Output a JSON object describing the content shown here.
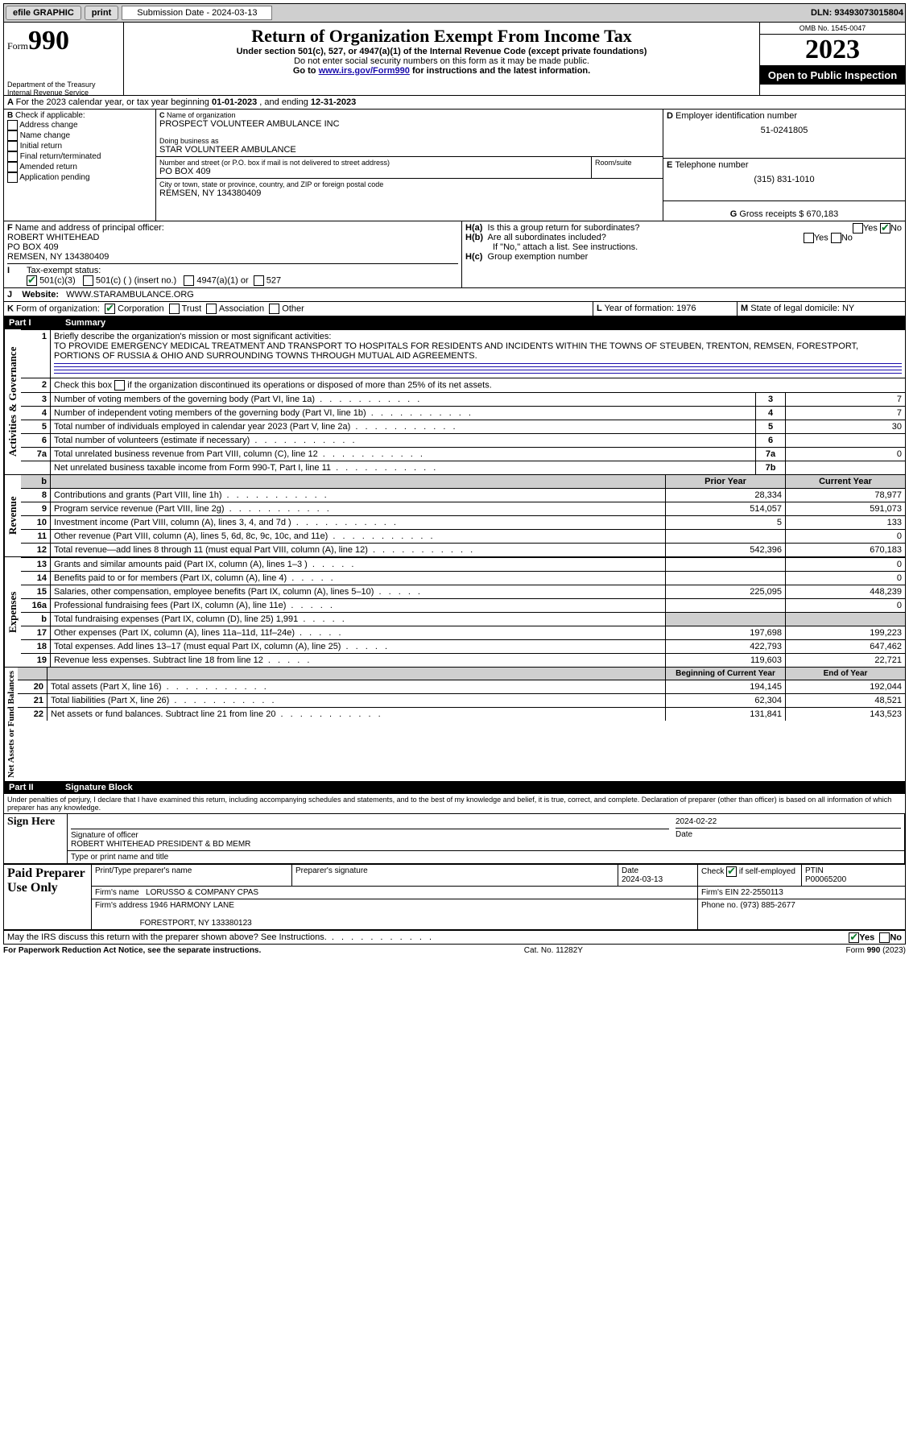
{
  "topbar": {
    "efile": "efile GRAPHIC",
    "print": "print",
    "sub_label": "Submission Date - 2024-03-13",
    "dln": "DLN: 93493073015804"
  },
  "header": {
    "form_word": "Form",
    "form_num": "990",
    "dept1": "Department of the Treasury",
    "dept2": "Internal Revenue Service",
    "title": "Return of Organization Exempt From Income Tax",
    "sub1": "Under section 501(c), 527, or 4947(a)(1) of the Internal Revenue Code (except private foundations)",
    "sub2": "Do not enter social security numbers on this form as it may be made public.",
    "sub3_pre": "Go to ",
    "sub3_link": "www.irs.gov/Form990",
    "sub3_post": " for instructions and the latest information.",
    "omb": "OMB No. 1545-0047",
    "year": "2023",
    "open": "Open to Public Inspection"
  },
  "A": {
    "text_pre": "For the 2023 calendar year, or tax year beginning ",
    "begin": "01-01-2023",
    "mid": " , and ending ",
    "end": "12-31-2023"
  },
  "B": {
    "label": "Check if applicable:",
    "items": [
      "Address change",
      "Name change",
      "Initial return",
      "Final return/terminated",
      "Amended return",
      "Application pending"
    ]
  },
  "C": {
    "name_lbl": "Name of organization",
    "name": "PROSPECT VOLUNTEER AMBULANCE INC",
    "dba_lbl": "Doing business as",
    "dba": "STAR VOLUNTEER AMBULANCE",
    "street_lbl": "Number and street (or P.O. box if mail is not delivered to street address)",
    "room_lbl": "Room/suite",
    "street": "PO BOX 409",
    "city_lbl": "City or town, state or province, country, and ZIP or foreign postal code",
    "city": "REMSEN, NY  134380409"
  },
  "D": {
    "lbl": "Employer identification number",
    "val": "51-0241805"
  },
  "E": {
    "lbl": "Telephone number",
    "val": "(315) 831-1010"
  },
  "G": {
    "lbl": "Gross receipts $",
    "val": "670,183"
  },
  "F": {
    "lbl": "Name and address of principal officer:",
    "name": "ROBERT WHITEHEAD",
    "line2": "PO BOX 409",
    "line3": "REMSEN, NY  134380409"
  },
  "H": {
    "a": "Is this a group return for subordinates?",
    "b": "Are all subordinates included?",
    "b2": "If \"No,\" attach a list. See instructions.",
    "c": "Group exemption number",
    "yes": "Yes",
    "no": "No"
  },
  "I": {
    "lbl": "Tax-exempt status:",
    "o1": "501(c)(3)",
    "o2": "501(c) (  ) (insert no.)",
    "o3": "4947(a)(1) or",
    "o4": "527"
  },
  "J": {
    "lbl": "Website:",
    "val": "WWW.STARAMBULANCE.ORG"
  },
  "K": {
    "lbl": "Form of organization:",
    "o1": "Corporation",
    "o2": "Trust",
    "o3": "Association",
    "o4": "Other"
  },
  "L": {
    "lbl": "Year of formation:",
    "val": "1976"
  },
  "M": {
    "lbl": "State of legal domicile:",
    "val": "NY"
  },
  "parts": {
    "p1": "Part I",
    "p1t": "Summary",
    "p2": "Part II",
    "p2t": "Signature Block"
  },
  "summary": {
    "q1": "Briefly describe the organization's mission or most significant activities:",
    "mission": "TO PROVIDE EMERGENCY MEDICAL TREATMENT AND TRANSPORT TO HOSPITALS FOR RESIDENTS AND INCIDENTS WITHIN THE TOWNS OF STEUBEN, TRENTON, REMSEN, FORESTPORT, PORTIONS OF RUSSIA & OHIO AND SURROUNDING TOWNS THROUGH MUTUAL AID AGREEMENTS.",
    "q2": "Check this box      if the organization discontinued its operations or disposed of more than 25% of its net assets.",
    "rows_gov": [
      {
        "n": "3",
        "t": "Number of voting members of the governing body (Part VI, line 1a)",
        "c": "3",
        "v": "7"
      },
      {
        "n": "4",
        "t": "Number of independent voting members of the governing body (Part VI, line 1b)",
        "c": "4",
        "v": "7"
      },
      {
        "n": "5",
        "t": "Total number of individuals employed in calendar year 2023 (Part V, line 2a)",
        "c": "5",
        "v": "30"
      },
      {
        "n": "6",
        "t": "Total number of volunteers (estimate if necessary)",
        "c": "6",
        "v": ""
      },
      {
        "n": "7a",
        "t": "Total unrelated business revenue from Part VIII, column (C), line 12",
        "c": "7a",
        "v": "0"
      },
      {
        "n": "",
        "t": "Net unrelated business taxable income from Form 990-T, Part I, line 11",
        "c": "7b",
        "v": ""
      }
    ],
    "col_prior": "Prior Year",
    "col_curr": "Current Year",
    "rows_rev": [
      {
        "n": "8",
        "t": "Contributions and grants (Part VIII, line 1h)",
        "p": "28,334",
        "c": "78,977"
      },
      {
        "n": "9",
        "t": "Program service revenue (Part VIII, line 2g)",
        "p": "514,057",
        "c": "591,073"
      },
      {
        "n": "10",
        "t": "Investment income (Part VIII, column (A), lines 3, 4, and 7d )",
        "p": "5",
        "c": "133"
      },
      {
        "n": "11",
        "t": "Other revenue (Part VIII, column (A), lines 5, 6d, 8c, 9c, 10c, and 11e)",
        "p": "",
        "c": "0"
      },
      {
        "n": "12",
        "t": "Total revenue—add lines 8 through 11 (must equal Part VIII, column (A), line 12)",
        "p": "542,396",
        "c": "670,183"
      }
    ],
    "rows_exp": [
      {
        "n": "13",
        "t": "Grants and similar amounts paid (Part IX, column (A), lines 1–3 )",
        "p": "",
        "c": "0"
      },
      {
        "n": "14",
        "t": "Benefits paid to or for members (Part IX, column (A), line 4)",
        "p": "",
        "c": "0"
      },
      {
        "n": "15",
        "t": "Salaries, other compensation, employee benefits (Part IX, column (A), lines 5–10)",
        "p": "225,095",
        "c": "448,239"
      },
      {
        "n": "16a",
        "t": "Professional fundraising fees (Part IX, column (A), line 11e)",
        "p": "",
        "c": "0"
      },
      {
        "n": "b",
        "t": "Total fundraising expenses (Part IX, column (D), line 25) 1,991",
        "p": "GRAY",
        "c": "GRAY"
      },
      {
        "n": "17",
        "t": "Other expenses (Part IX, column (A), lines 11a–11d, 11f–24e)",
        "p": "197,698",
        "c": "199,223"
      },
      {
        "n": "18",
        "t": "Total expenses. Add lines 13–17 (must equal Part IX, column (A), line 25)",
        "p": "422,793",
        "c": "647,462"
      },
      {
        "n": "19",
        "t": "Revenue less expenses. Subtract line 18 from line 12",
        "p": "119,603",
        "c": "22,721"
      }
    ],
    "col_boy": "Beginning of Current Year",
    "col_eoy": "End of Year",
    "rows_net": [
      {
        "n": "20",
        "t": "Total assets (Part X, line 16)",
        "p": "194,145",
        "c": "192,044"
      },
      {
        "n": "21",
        "t": "Total liabilities (Part X, line 26)",
        "p": "62,304",
        "c": "48,521"
      },
      {
        "n": "22",
        "t": "Net assets or fund balances. Subtract line 21 from line 20",
        "p": "131,841",
        "c": "143,523"
      }
    ],
    "vlabels": {
      "gov": "Activities & Governance",
      "rev": "Revenue",
      "exp": "Expenses",
      "net": "Net Assets or Fund Balances"
    }
  },
  "sig": {
    "perjury": "Under penalties of perjury, I declare that I have examined this return, including accompanying schedules and statements, and to the best of my knowledge and belief, it is true, correct, and complete. Declaration of preparer (other than officer) is based on all information of which preparer has any knowledge.",
    "sign_here": "Sign Here",
    "sig_officer": "Signature of officer",
    "date": "Date",
    "date_val": "2024-02-22",
    "name_title": "ROBERT WHITEHEAD  PRESIDENT & BD MEMR",
    "type_name": "Type or print name and title",
    "paid": "Paid Preparer Use Only",
    "pt_name_lbl": "Print/Type preparer's name",
    "pt_sig_lbl": "Preparer's signature",
    "pt_date_lbl": "Date",
    "pt_date": "2024-03-13",
    "check_self": "Check        if self-employed",
    "ptin_lbl": "PTIN",
    "ptin": "P00065200",
    "firm_name_lbl": "Firm's name",
    "firm_name": "LORUSSO & COMPANY CPAS",
    "firm_ein_lbl": "Firm's EIN",
    "firm_ein": "22-2550113",
    "firm_addr_lbl": "Firm's address",
    "firm_addr1": "1946 HARMONY LANE",
    "firm_addr2": "FORESTPORT, NY  133380123",
    "phone_lbl": "Phone no.",
    "phone": "(973) 885-2677",
    "discuss": "May the IRS discuss this return with the preparer shown above? See Instructions."
  },
  "footer": {
    "left": "For Paperwork Reduction Act Notice, see the separate instructions.",
    "mid": "Cat. No. 11282Y",
    "right": "Form 990 (2023)"
  }
}
